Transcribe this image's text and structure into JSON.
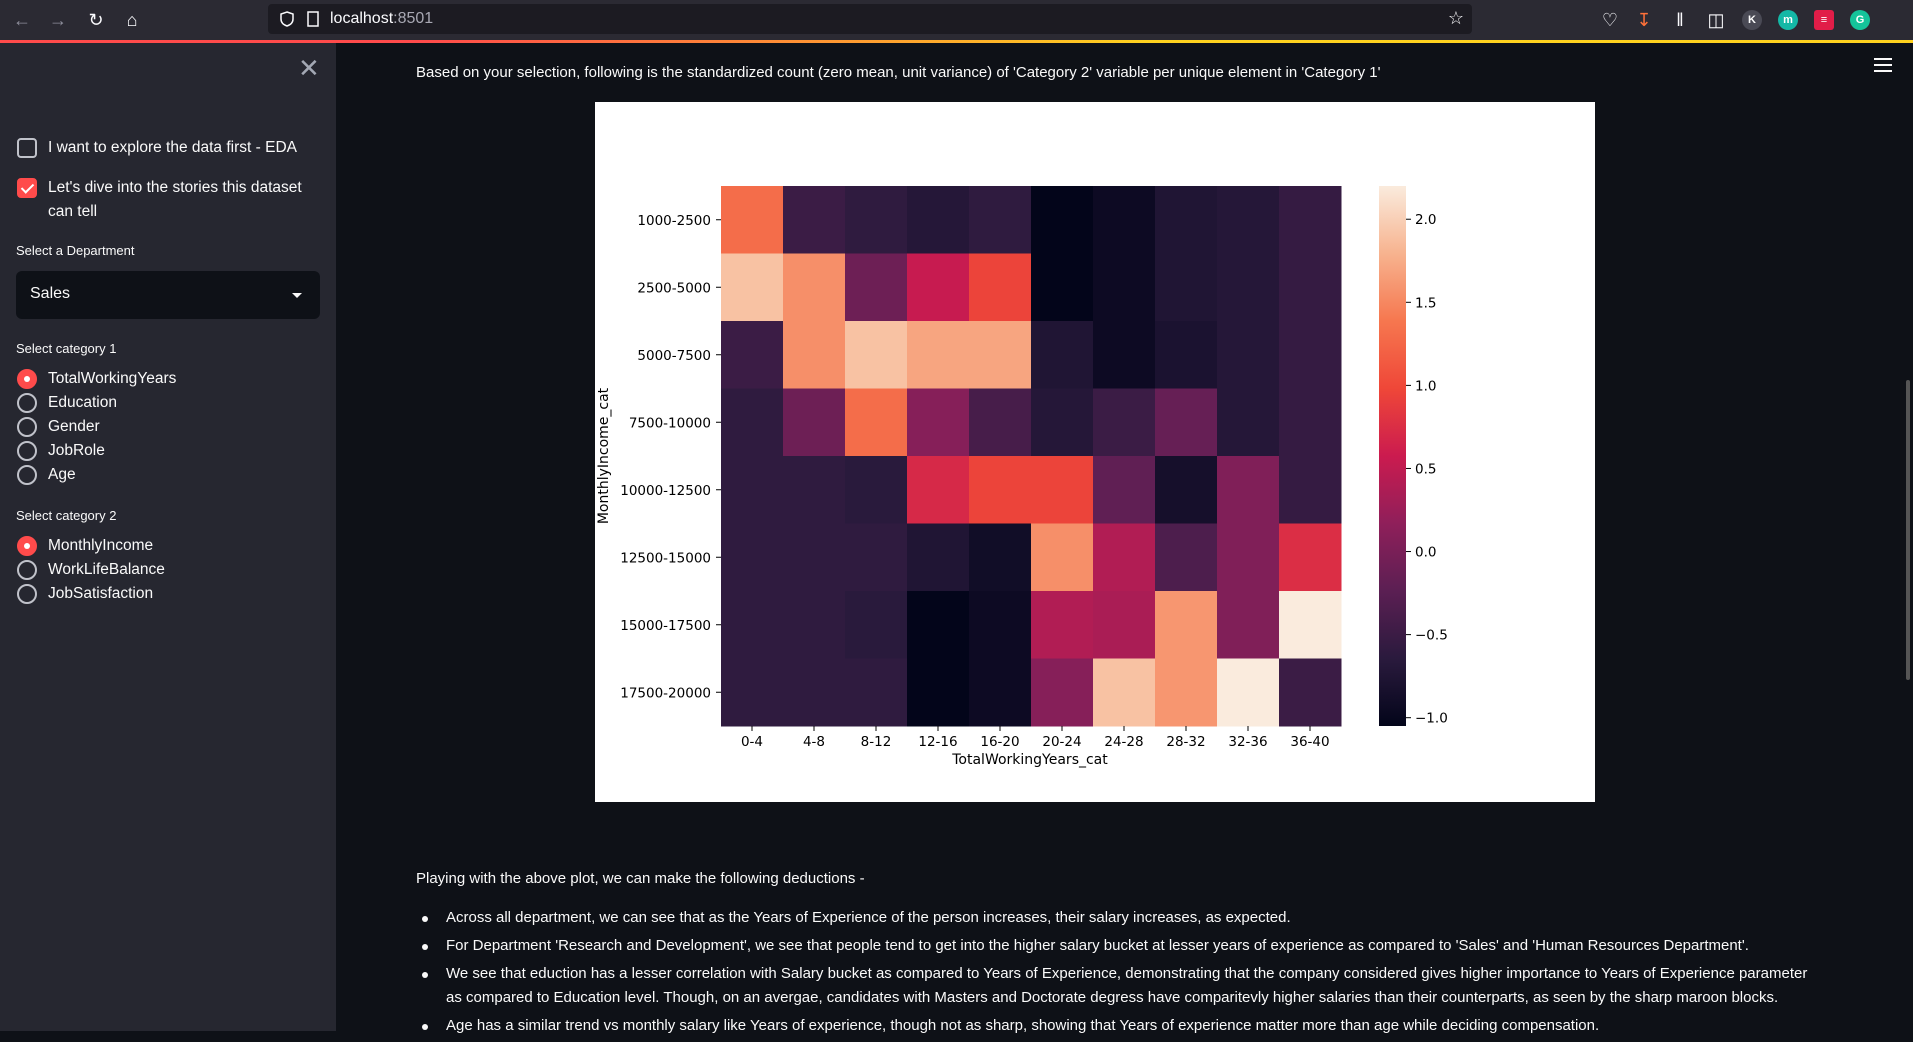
{
  "browser": {
    "url_host": "localhost",
    "url_port": ":8501",
    "extension_labels": [
      "K",
      "m",
      "G"
    ]
  },
  "sidebar": {
    "checkbox_eda": "I want to explore the data first - EDA",
    "checkbox_stories": "Let's dive into the stories this dataset can tell",
    "checkbox_eda_checked": false,
    "checkbox_stories_checked": true,
    "department_label": "Select a Department",
    "department_value": "Sales",
    "category1_label": "Select category 1",
    "category1_options": [
      "TotalWorkingYears",
      "Education",
      "Gender",
      "JobRole",
      "Age"
    ],
    "category1_selected": "TotalWorkingYears",
    "category2_label": "Select category 2",
    "category2_options": [
      "MonthlyIncome",
      "WorkLifeBalance",
      "JobSatisfaction"
    ],
    "category2_selected": "MonthlyIncome"
  },
  "main": {
    "intro": "Based on your selection, following is the standardized count (zero mean, unit variance) of 'Category 2' variable per unique element in 'Category 1'",
    "deductions_title": "Playing with the above plot, we can make the following deductions -",
    "bullets": [
      "Across all department, we can see that as the Years of Experience of the person increases, their salary increases, as expected.",
      "For Department 'Research and Development', we see that people tend to get into the higher salary bucket at lesser years of experience as compared to 'Sales' and 'Human Resources Department'.",
      "We see that eduction has a lesser correlation with Salary bucket as compared to Years of Experience, demonstrating that the company considered gives higher importance to Years of Experience parameter as compared to Education level. Though, on an avergae, candidates with Masters and Doctorate degress have comparitevly higher salaries than their counterparts, as seen by the sharp maroon blocks.",
      "Age has a similar trend vs monthly salary like Years of experience, though not as sharp, showing that Years of experience matter more than age while deciding compensation."
    ]
  },
  "chart_data": {
    "type": "heatmap",
    "xlabel": "TotalWorkingYears_cat",
    "ylabel": "MonthlyIncome_cat",
    "x": [
      "0-4",
      "4-8",
      "8-12",
      "12-16",
      "16-20",
      "20-24",
      "24-28",
      "28-32",
      "32-36",
      "36-40"
    ],
    "y": [
      "1000-2500",
      "2500-5000",
      "5000-7500",
      "7500-10000",
      "10000-12500",
      "12500-15000",
      "15000-17500",
      "17500-20000"
    ],
    "values": [
      [
        1.3,
        -0.5,
        -0.6,
        -0.7,
        -0.6,
        -1.05,
        -0.95,
        -0.75,
        -0.7,
        -0.55
      ],
      [
        1.9,
        1.55,
        -0.1,
        0.55,
        0.95,
        -1.05,
        -0.95,
        -0.75,
        -0.7,
        -0.55
      ],
      [
        -0.5,
        1.55,
        1.9,
        1.7,
        1.7,
        -0.75,
        -0.95,
        -0.8,
        -0.7,
        -0.55
      ],
      [
        -0.6,
        -0.1,
        1.3,
        0.1,
        -0.4,
        -0.7,
        -0.5,
        -0.15,
        -0.7,
        -0.55
      ],
      [
        -0.6,
        -0.6,
        -0.65,
        0.7,
        0.95,
        0.95,
        -0.2,
        -0.85,
        0.05,
        -0.55
      ],
      [
        -0.6,
        -0.6,
        -0.6,
        -0.75,
        -0.9,
        1.55,
        0.4,
        -0.35,
        0.05,
        0.75
      ],
      [
        -0.6,
        -0.6,
        -0.65,
        -1.05,
        -0.95,
        0.4,
        0.35,
        1.6,
        0.05,
        2.2
      ],
      [
        -0.6,
        -0.6,
        -0.6,
        -1.05,
        -0.95,
        0.1,
        1.9,
        1.6,
        2.2,
        -0.5
      ]
    ],
    "colorbar": {
      "min": -1.05,
      "max": 2.2,
      "ticks": [
        2.0,
        1.5,
        1.0,
        0.5,
        0.0,
        -0.5,
        -1.0
      ],
      "tick_labels": [
        "2.0",
        "1.5",
        "1.0",
        "0.5",
        "0.0",
        "−0.5",
        "−1.0"
      ]
    },
    "colormap": "rocket"
  }
}
